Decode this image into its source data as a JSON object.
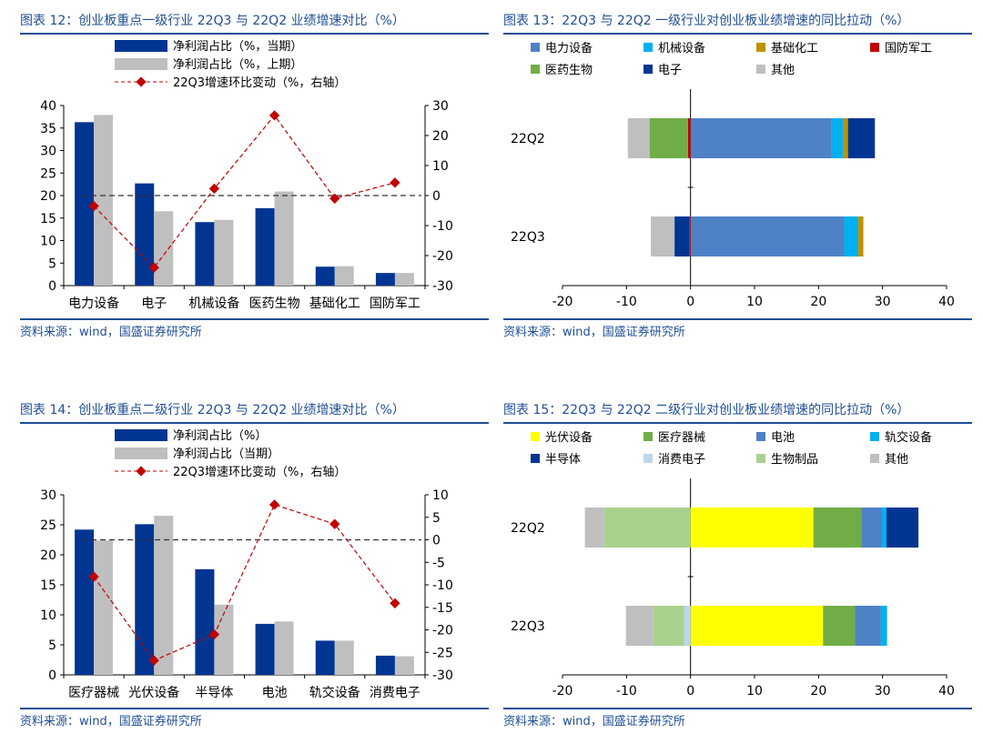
{
  "chart_data": [
    {
      "id": "fig12",
      "type": "bar",
      "title": "图表 12：创业板重点一级行业 22Q3 与 22Q2 业绩增速对比（%）",
      "source": "资料来源：wind，国盛证券研究所",
      "categories": [
        "电力设备",
        "电子",
        "机械设备",
        "医药生物",
        "基础化工",
        "国防军工"
      ],
      "series": [
        {
          "name": "净利润占比（%，当期）",
          "kind": "bar",
          "axis": "left",
          "color": "#003592",
          "values": [
            36.3,
            22.7,
            14.1,
            17.2,
            4.2,
            2.8
          ]
        },
        {
          "name": "净利润占比（%，上期）",
          "kind": "bar",
          "axis": "left",
          "color": "#bfbfbf",
          "values": [
            37.9,
            16.5,
            14.6,
            20.9,
            4.3,
            2.8
          ]
        },
        {
          "name": "22Q3增速环比变动（%，右轴）",
          "kind": "line",
          "axis": "right",
          "color": "#c00000",
          "values": [
            -3.5,
            -24.0,
            2.3,
            26.7,
            -1.0,
            4.3
          ]
        }
      ],
      "ylim": [
        0,
        40
      ],
      "yticks": [
        0,
        5,
        10,
        15,
        20,
        25,
        30,
        35,
        40
      ],
      "y2lim": [
        -30,
        30
      ],
      "y2ticks": [
        -30,
        -20,
        -10,
        0,
        10,
        20,
        30
      ],
      "refline_y2": 0
    },
    {
      "id": "fig13",
      "type": "stacked_barh",
      "title": "图表 13：22Q3 与 22Q2 一级行业对创业板业绩增速的同比拉动（%）",
      "source": "资料来源：wind，国盛证券研究所",
      "categories": [
        "22Q2",
        "22Q3"
      ],
      "series": [
        {
          "name": "电力设备",
          "color": "#4f81c7",
          "values": [
            22.0,
            24.0
          ]
        },
        {
          "name": "机械设备",
          "color": "#00b0f0",
          "values": [
            1.8,
            2.2
          ]
        },
        {
          "name": "基础化工",
          "color": "#bf9000",
          "values": [
            0.8,
            0.8
          ]
        },
        {
          "name": "国防军工",
          "color": "#c00000",
          "values": [
            -0.4,
            -0.2
          ]
        },
        {
          "name": "医药生物",
          "color": "#70ad47",
          "values": [
            -6.0,
            0
          ]
        },
        {
          "name": "电子",
          "color": "#003592",
          "values": [
            4.2,
            -2.3
          ]
        },
        {
          "name": "其他",
          "color": "#bfbfbf",
          "values": [
            -3.4,
            -3.7
          ]
        }
      ],
      "xlim": [
        -20,
        40
      ],
      "xticks": [
        -20,
        -10,
        0,
        10,
        20,
        30,
        40
      ]
    },
    {
      "id": "fig14",
      "type": "bar",
      "title": "图表 14：创业板重点二级行业 22Q3 与 22Q2 业绩增速对比（%）",
      "source": "资料来源：wind，国盛证券研究所",
      "categories": [
        "医疗器械",
        "光伏设备",
        "半导体",
        "电池",
        "轨交设备",
        "消费电子"
      ],
      "series": [
        {
          "name": "净利润占比（%）",
          "kind": "bar",
          "axis": "left",
          "color": "#003592",
          "values": [
            24.2,
            25.1,
            17.6,
            8.5,
            5.7,
            3.2
          ]
        },
        {
          "name": "净利润占比（当期）",
          "kind": "bar",
          "axis": "left",
          "color": "#bfbfbf",
          "values": [
            22.4,
            26.5,
            11.7,
            8.9,
            5.7,
            3.1
          ]
        },
        {
          "name": "22Q3增速环比变动（%，右轴）",
          "kind": "line",
          "axis": "right",
          "color": "#c00000",
          "values": [
            -8.2,
            -26.8,
            -21.0,
            7.8,
            3.5,
            -14.1
          ]
        }
      ],
      "ylim": [
        0,
        30
      ],
      "yticks": [
        0,
        5,
        10,
        15,
        20,
        25,
        30
      ],
      "y2lim": [
        -30,
        10
      ],
      "y2ticks": [
        -30,
        -25,
        -20,
        -15,
        -10,
        -5,
        0,
        5,
        10
      ],
      "refline_y2": 0
    },
    {
      "id": "fig15",
      "type": "stacked_barh",
      "title": "图表 15：22Q3 与 22Q2 二级行业对创业板业绩增速的同比拉动（%）",
      "source": "资料来源：wind，国盛证券研究所",
      "categories": [
        "22Q2",
        "22Q3"
      ],
      "series": [
        {
          "name": "光伏设备",
          "color": "#ffff00",
          "values": [
            19.2,
            20.7
          ]
        },
        {
          "name": "医疗器械",
          "color": "#70ad47",
          "values": [
            7.5,
            5.0
          ]
        },
        {
          "name": "电池",
          "color": "#4f81c7",
          "values": [
            3.2,
            4.0
          ]
        },
        {
          "name": "轨交设备",
          "color": "#00b0f0",
          "values": [
            0.7,
            1.0
          ]
        },
        {
          "name": "半导体",
          "color": "#003592",
          "values": [
            5.0,
            0
          ]
        },
        {
          "name": "消费电子",
          "color": "#bdd7ee",
          "values": [
            0,
            -1.0
          ]
        },
        {
          "name": "生物制品",
          "color": "#a9d18e",
          "values": [
            -13.5,
            -4.8
          ]
        },
        {
          "name": "其他",
          "color": "#bfbfbf",
          "values": [
            -3.0,
            -4.3
          ]
        }
      ],
      "xlim": [
        -20,
        40
      ],
      "xticks": [
        -20,
        -10,
        0,
        10,
        20,
        30,
        40
      ]
    }
  ]
}
